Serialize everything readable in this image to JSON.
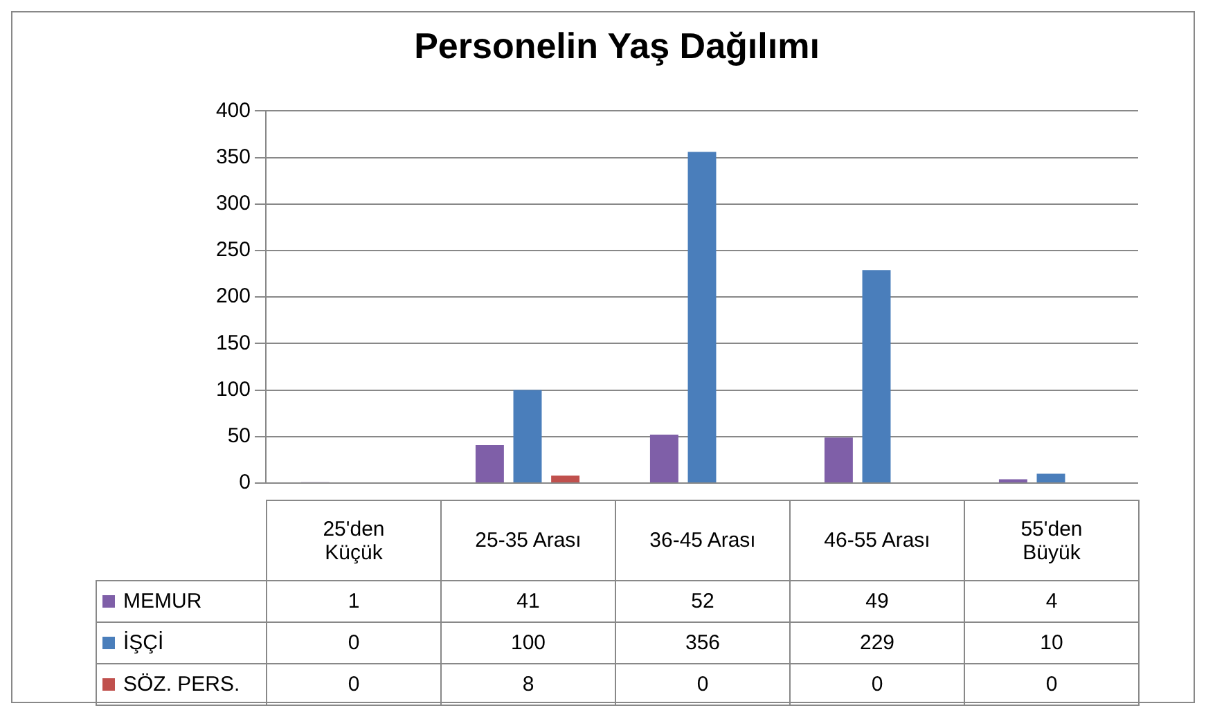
{
  "chart_data": {
    "type": "bar",
    "title": "Personelin Yaş Dağılımı",
    "categories": [
      "25'den Küçük",
      "25-35 Arası",
      "36-45 Arası",
      "46-55 Arası",
      "55'den Büyük"
    ],
    "series": [
      {
        "name": "MEMUR",
        "color": "#7f5fa8",
        "values": [
          1,
          41,
          52,
          49,
          4
        ]
      },
      {
        "name": "İŞÇİ",
        "color": "#4a7ebb",
        "values": [
          0,
          100,
          356,
          229,
          10
        ]
      },
      {
        "name": "SÖZ. PERS.",
        "color": "#c0504d",
        "values": [
          0,
          8,
          0,
          0,
          0
        ]
      }
    ],
    "ylim": [
      0,
      400
    ],
    "yticks": [
      0,
      50,
      100,
      150,
      200,
      250,
      300,
      350,
      400
    ],
    "grid": "y",
    "legend": "bottom",
    "data_labels": true
  }
}
